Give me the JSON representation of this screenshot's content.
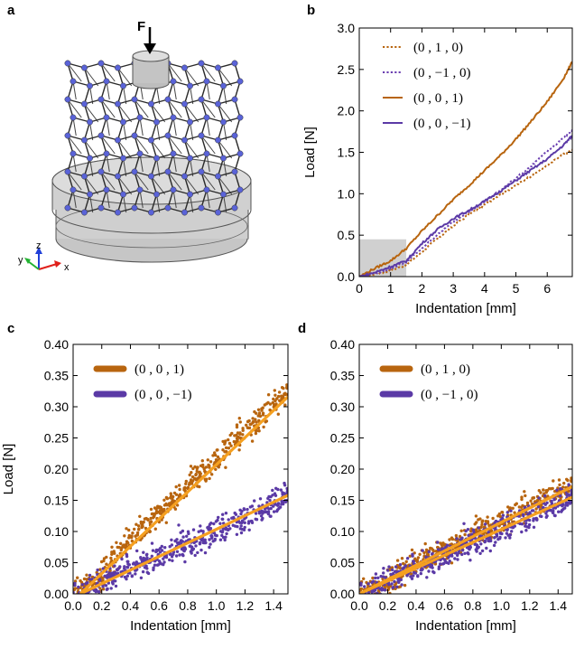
{
  "panel_labels": [
    "a",
    "b",
    "c",
    "d"
  ],
  "illustration": {
    "force_label": "F",
    "axes": {
      "z": "z",
      "y": "y",
      "x": "x"
    },
    "colors": {
      "lattice": "#5a63d8",
      "strut": "#2a2a2a",
      "base": "#d4d4d4",
      "indenter": "#c6c6c6",
      "axis_x": "#e0201b",
      "axis_y": "#22b231",
      "axis_z": "#1f3fd8"
    }
  },
  "chart_data": [
    {
      "panel": "b",
      "type": "line",
      "xlabel": "Indentation [mm]",
      "ylabel": "Load [N]",
      "xlim": [
        0,
        6.8
      ],
      "ylim": [
        0,
        3.0
      ],
      "xticks": [
        0,
        1,
        2,
        3,
        4,
        5,
        6
      ],
      "xtick_labels": [
        "0",
        "1",
        "2",
        "3",
        "4",
        "5",
        "6"
      ],
      "yticks": [
        0,
        0.5,
        1.0,
        1.5,
        2.0,
        2.5,
        3.0
      ],
      "ytick_labels": [
        "0.0",
        "0.5",
        "1.0",
        "1.5",
        "2.0",
        "2.5",
        "3.0"
      ],
      "grid": false,
      "legend_position": "top-left",
      "highlight_region": {
        "x": [
          0,
          1.5
        ],
        "y": [
          0,
          0.45
        ],
        "color": "#c8c8c8"
      },
      "series": [
        {
          "name": "(0 , 1 , 0)",
          "style": "dotted",
          "color": "#b8650f",
          "x": [
            0,
            0.5,
            1.0,
            1.5,
            2.0,
            2.5,
            3.0,
            3.5,
            4.0,
            4.5,
            5.0,
            5.5,
            6.0,
            6.5,
            6.8
          ],
          "y": [
            0,
            0.03,
            0.07,
            0.14,
            0.3,
            0.46,
            0.61,
            0.75,
            0.87,
            0.99,
            1.1,
            1.22,
            1.34,
            1.47,
            1.53
          ]
        },
        {
          "name": "(0 , −1 , 0)",
          "style": "dotted",
          "color": "#6a3fb0",
          "x": [
            0,
            0.5,
            1.0,
            1.5,
            2.0,
            2.5,
            3.0,
            3.5,
            4.0,
            4.5,
            5.0,
            5.5,
            6.0,
            6.5,
            6.8
          ],
          "y": [
            0,
            0.04,
            0.09,
            0.18,
            0.34,
            0.51,
            0.66,
            0.78,
            0.9,
            1.04,
            1.19,
            1.34,
            1.51,
            1.67,
            1.77
          ]
        },
        {
          "name": "(0 , 0 , 1)",
          "style": "solid",
          "color": "#b8650f",
          "x": [
            0,
            0.5,
            1.0,
            1.5,
            2.0,
            2.5,
            3.0,
            3.5,
            4.0,
            4.5,
            5.0,
            5.5,
            6.0,
            6.5,
            6.8
          ],
          "y": [
            0,
            0.1,
            0.19,
            0.34,
            0.55,
            0.74,
            0.93,
            1.1,
            1.28,
            1.46,
            1.66,
            1.88,
            2.11,
            2.38,
            2.59
          ]
        },
        {
          "name": "(0 , 0 , −1)",
          "style": "solid",
          "color": "#5b3aa6",
          "x": [
            0,
            0.5,
            1.0,
            1.5,
            2.0,
            2.5,
            3.0,
            3.5,
            4.0,
            4.5,
            5.0,
            5.5,
            6.0,
            6.5,
            6.8
          ],
          "y": [
            0,
            0.05,
            0.12,
            0.19,
            0.4,
            0.57,
            0.7,
            0.8,
            0.91,
            1.03,
            1.16,
            1.29,
            1.42,
            1.58,
            1.7
          ]
        }
      ]
    },
    {
      "panel": "c",
      "type": "scatter",
      "xlabel": "Indentation [mm]",
      "ylabel": "Load [N]",
      "xlim": [
        0,
        1.5
      ],
      "ylim": [
        0,
        0.4
      ],
      "xticks": [
        0,
        0.2,
        0.4,
        0.6,
        0.8,
        1.0,
        1.2,
        1.4
      ],
      "xtick_labels": [
        "0.0",
        "0.2",
        "0.4",
        "0.6",
        "0.8",
        "1.0",
        "1.2",
        "1.4"
      ],
      "yticks": [
        0,
        0.05,
        0.1,
        0.15,
        0.2,
        0.25,
        0.3,
        0.35,
        0.4
      ],
      "ytick_labels": [
        "0.00",
        "0.05",
        "0.10",
        "0.15",
        "0.20",
        "0.25",
        "0.30",
        "0.35",
        "0.40"
      ],
      "grid": false,
      "legend_position": "top-left",
      "fit_color": "#f5a020",
      "series": [
        {
          "name": "(0 , 0 , 1)",
          "color": "#b8650f",
          "x": [
            0.0,
            0.1,
            0.2,
            0.3,
            0.4,
            0.5,
            0.6,
            0.7,
            0.8,
            0.9,
            1.0,
            1.1,
            1.2,
            1.3,
            1.4,
            1.5
          ],
          "y": [
            0.0,
            0.015,
            0.035,
            0.06,
            0.085,
            0.105,
            0.13,
            0.15,
            0.17,
            0.195,
            0.215,
            0.24,
            0.26,
            0.28,
            0.305,
            0.322
          ],
          "fit": {
            "x": [
              0.05,
              1.5
            ],
            "y": [
              0.0,
              0.316
            ]
          }
        },
        {
          "name": "(0 , 0 , −1)",
          "color": "#5b3aa6",
          "x": [
            0.0,
            0.1,
            0.2,
            0.3,
            0.4,
            0.5,
            0.6,
            0.7,
            0.8,
            0.9,
            1.0,
            1.1,
            1.2,
            1.3,
            1.4,
            1.5
          ],
          "y": [
            0.0,
            0.006,
            0.015,
            0.028,
            0.04,
            0.05,
            0.06,
            0.07,
            0.08,
            0.09,
            0.1,
            0.11,
            0.12,
            0.13,
            0.145,
            0.158
          ],
          "fit": {
            "x": [
              0.05,
              1.5
            ],
            "y": [
              0.0,
              0.158
            ]
          }
        }
      ]
    },
    {
      "panel": "d",
      "type": "scatter",
      "xlabel": "Indentation [mm]",
      "ylabel": "",
      "xlim": [
        0,
        1.5
      ],
      "ylim": [
        0,
        0.4
      ],
      "xticks": [
        0,
        0.2,
        0.4,
        0.6,
        0.8,
        1.0,
        1.2,
        1.4
      ],
      "xtick_labels": [
        "0.0",
        "0.2",
        "0.4",
        "0.6",
        "0.8",
        "1.0",
        "1.2",
        "1.4"
      ],
      "yticks": [
        0,
        0.05,
        0.1,
        0.15,
        0.2,
        0.25,
        0.3,
        0.35,
        0.4
      ],
      "ytick_labels": [
        "0.00",
        "0.05",
        "0.10",
        "0.15",
        "0.20",
        "0.25",
        "0.30",
        "0.35",
        "0.40"
      ],
      "grid": false,
      "legend_position": "top-left",
      "fit_color": "#f5a020",
      "series": [
        {
          "name": "(0 , 1 , 0)",
          "color": "#b8650f",
          "x": [
            0.0,
            0.1,
            0.2,
            0.3,
            0.4,
            0.5,
            0.6,
            0.7,
            0.8,
            0.9,
            1.0,
            1.1,
            1.2,
            1.3,
            1.4,
            1.5
          ],
          "y": [
            0.0,
            0.01,
            0.022,
            0.035,
            0.047,
            0.058,
            0.07,
            0.081,
            0.093,
            0.105,
            0.116,
            0.128,
            0.139,
            0.151,
            0.162,
            0.172
          ],
          "fit": {
            "x": [
              0.0,
              1.5
            ],
            "y": [
              0.0,
              0.172
            ]
          }
        },
        {
          "name": "(0 , −1 , 0)",
          "color": "#5b3aa6",
          "x": [
            0.0,
            0.1,
            0.2,
            0.3,
            0.4,
            0.5,
            0.6,
            0.7,
            0.8,
            0.9,
            1.0,
            1.1,
            1.2,
            1.3,
            1.4,
            1.5
          ],
          "y": [
            0.0,
            0.008,
            0.018,
            0.03,
            0.04,
            0.051,
            0.062,
            0.072,
            0.083,
            0.093,
            0.103,
            0.114,
            0.124,
            0.135,
            0.145,
            0.155
          ],
          "fit": {
            "x": [
              0.0,
              1.5
            ],
            "y": [
              0.0,
              0.155
            ]
          }
        }
      ]
    }
  ]
}
